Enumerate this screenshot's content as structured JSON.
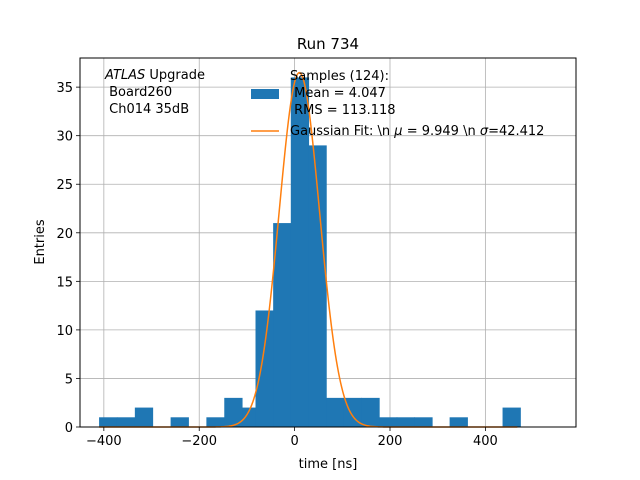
{
  "chart_data": {
    "type": "bar",
    "title": "Run 734",
    "xlabel": "time [ns]",
    "ylabel": "Entries",
    "xlim": [
      -450,
      590
    ],
    "ylim": [
      0,
      38
    ],
    "xticks": [
      -400,
      -200,
      0,
      200,
      400
    ],
    "yticks": [
      0,
      5,
      10,
      15,
      20,
      25,
      30,
      35
    ],
    "xtick_labels": [
      "−400",
      "−200",
      "0",
      "200",
      "400"
    ],
    "ytick_labels": [
      "0",
      "5",
      "10",
      "15",
      "20",
      "25",
      "30",
      "35"
    ],
    "grid": true,
    "annotation": {
      "line1_italic": "ATLAS",
      "line1_rest": " Upgrade",
      "line2": " Board260",
      "line3": " Ch014 35dB"
    },
    "histogram": {
      "name_lines": [
        "Samples (124):",
        " Mean = 4.047",
        " RMS = 113.118"
      ],
      "color": "#1f77b4",
      "bin_width": 37.5,
      "bins": [
        {
          "x0": -410,
          "count": 1
        },
        {
          "x0": -372.5,
          "count": 1
        },
        {
          "x0": -335,
          "count": 2
        },
        {
          "x0": -297.5,
          "count": 0
        },
        {
          "x0": -260,
          "count": 1
        },
        {
          "x0": -222.5,
          "count": 0
        },
        {
          "x0": -185,
          "count": 1
        },
        {
          "x0": -147.5,
          "count": 3
        },
        {
          "x0": -110,
          "count": 2
        },
        {
          "x0": -82,
          "count": 12
        },
        {
          "x0": -45,
          "count": 21
        },
        {
          "x0": -8,
          "count": 36
        },
        {
          "x0": 29,
          "count": 29
        },
        {
          "x0": 66,
          "count": 3
        },
        {
          "x0": 103,
          "count": 3
        },
        {
          "x0": 140,
          "count": 3
        },
        {
          "x0": 177,
          "count": 1
        },
        {
          "x0": 214,
          "count": 1
        },
        {
          "x0": 251,
          "count": 1
        },
        {
          "x0": 288,
          "count": 0
        },
        {
          "x0": 325,
          "count": 1
        },
        {
          "x0": 362,
          "count": 0
        },
        {
          "x0": 399,
          "count": 0
        },
        {
          "x0": 436,
          "count": 2
        }
      ]
    },
    "fit": {
      "legend_prefix": "Gaussian Fit: \\n ",
      "legend_mu_symbol": "μ",
      "legend_mid": " = 9.949 \\n ",
      "legend_sigma_symbol": "σ",
      "legend_suffix": "=42.412",
      "type": "gaussian",
      "mu": 9.949,
      "sigma": 42.412,
      "amplitude": 36.5,
      "color": "#ff7f0e",
      "x_range": [
        -410,
        467
      ]
    },
    "legend_position": "top-right"
  }
}
